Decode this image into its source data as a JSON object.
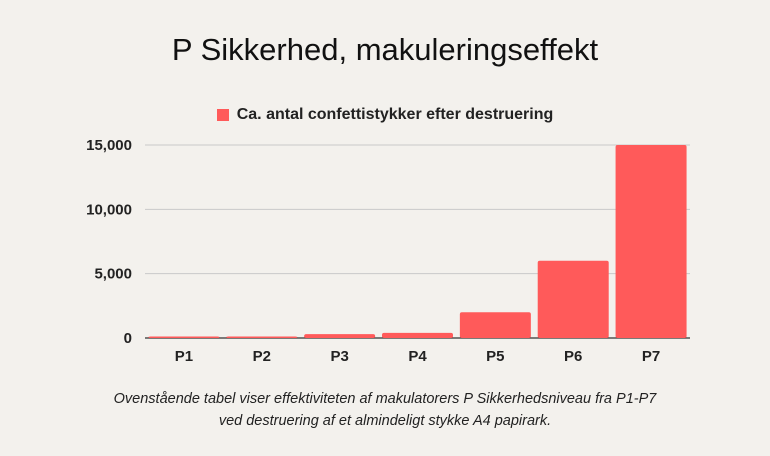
{
  "chart_data": {
    "type": "bar",
    "title": "P Sikkerhed, makuleringseffekt",
    "categories": [
      "P1",
      "P2",
      "P3",
      "P4",
      "P5",
      "P6",
      "P7"
    ],
    "series": [
      {
        "name": "Ca. antal confettistykker efter destruering",
        "values": [
          20,
          80,
          300,
          400,
          2000,
          6000,
          15000
        ]
      }
    ],
    "ylim": [
      0,
      15000
    ],
    "yticks": [
      "0",
      "5,000",
      "10,000",
      "15,000"
    ],
    "ytick_values": [
      0,
      5000,
      10000,
      15000
    ],
    "grid": true,
    "legend_position": "top-center",
    "color": "#ff5a5a"
  },
  "caption": {
    "line1": "Ovenstående tabel viser effektiviteten af makulatorers P Sikkerhedsniveau fra P1-P7",
    "line2": "ved destruering af et almindeligt stykke A4 papirark."
  }
}
